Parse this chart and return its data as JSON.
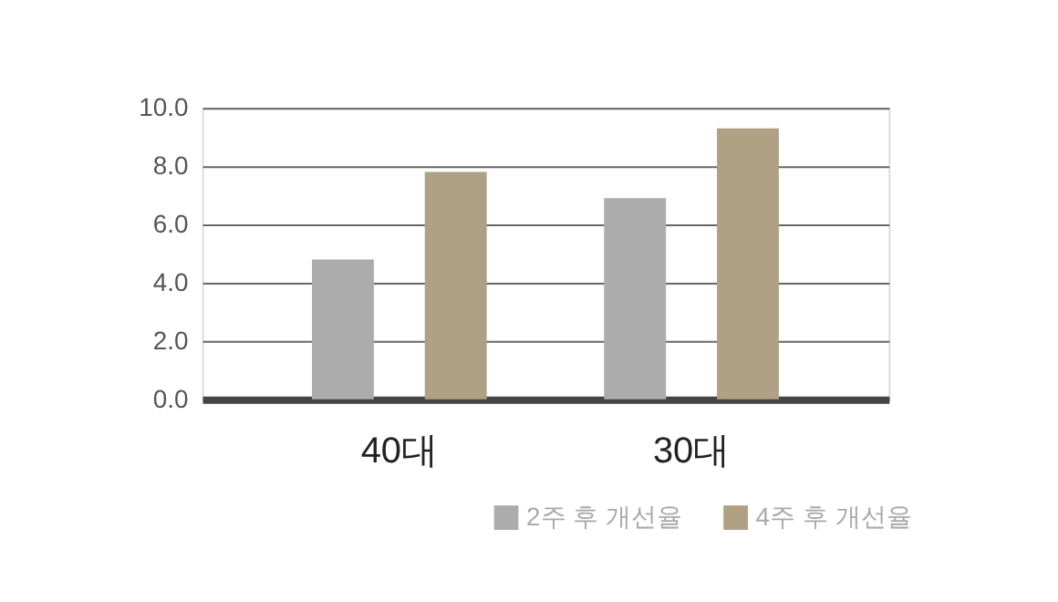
{
  "chart_data": {
    "type": "bar",
    "categories": [
      "40대",
      "30대"
    ],
    "series": [
      {
        "name": "2주 후 개선율",
        "color": "#acacac",
        "values": [
          4.8,
          6.9
        ]
      },
      {
        "name": "4주 후 개선율",
        "color": "#b0a185",
        "values": [
          7.8,
          9.3
        ]
      }
    ],
    "ylim": [
      0,
      10
    ],
    "yticks": [
      {
        "value": 0,
        "label": "0.0"
      },
      {
        "value": 2,
        "label": "2.0"
      },
      {
        "value": 4,
        "label": "4.0"
      },
      {
        "value": 6,
        "label": "6.0"
      },
      {
        "value": 8,
        "label": "8.0"
      },
      {
        "value": 10,
        "label": "10.0"
      }
    ],
    "grid": "y",
    "legend": "bottom right"
  }
}
